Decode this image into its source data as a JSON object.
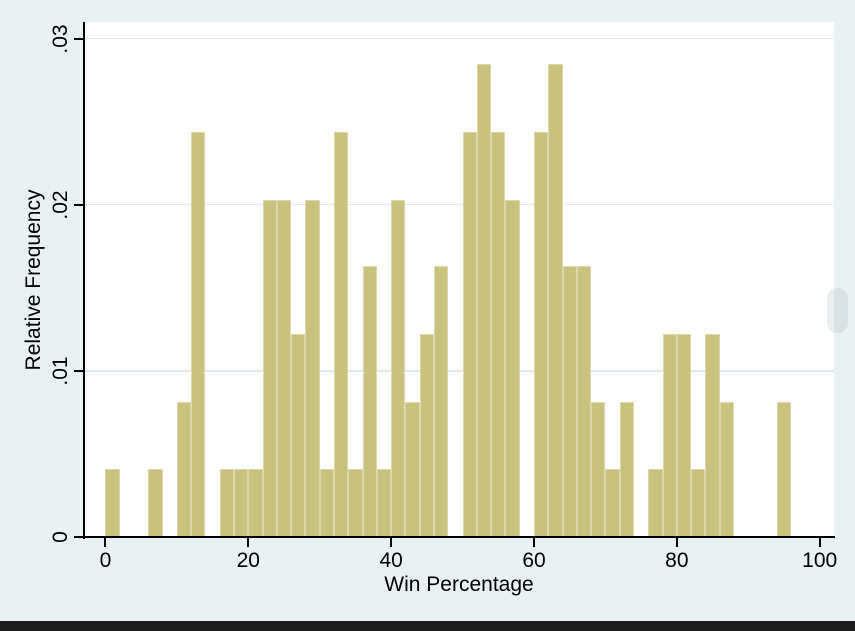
{
  "window": {
    "background_color": "#eaf1f3",
    "plot_background_color": "#ffffff",
    "gridline_color": "#dce9ef",
    "bottom_bar_color": "#1c1c1c"
  },
  "chart_data": {
    "type": "bar",
    "subtype": "histogram",
    "title": "",
    "xlabel": "Win Percentage",
    "ylabel": "Relative Frequency",
    "xlim": [
      -3,
      102
    ],
    "ylim": [
      0,
      0.031
    ],
    "grid": true,
    "y_gridlines": [
      0.01,
      0.02,
      0.03
    ],
    "bar_color": "#c9c17e",
    "bar_border_color": "#ddd8ab",
    "bin_width": 2,
    "x_ticks": [
      {
        "value": 0,
        "label": "0"
      },
      {
        "value": 20,
        "label": "20"
      },
      {
        "value": 40,
        "label": "40"
      },
      {
        "value": 60,
        "label": "60"
      },
      {
        "value": 80,
        "label": "80"
      },
      {
        "value": 100,
        "label": "100"
      }
    ],
    "y_ticks": [
      {
        "value": 0,
        "label": "0"
      },
      {
        "value": 0.01,
        "label": ".01"
      },
      {
        "value": 0.02,
        "label": ".02"
      },
      {
        "value": 0.03,
        "label": ".03"
      }
    ],
    "bins": [
      {
        "x0": 0,
        "x1": 2,
        "count": 1,
        "density": 0.0041
      },
      {
        "x0": 6,
        "x1": 8,
        "count": 1,
        "density": 0.0041
      },
      {
        "x0": 10,
        "x1": 12,
        "count": 2,
        "density": 0.0081
      },
      {
        "x0": 12,
        "x1": 14,
        "count": 6,
        "density": 0.0244
      },
      {
        "x0": 16,
        "x1": 18,
        "count": 1,
        "density": 0.0041
      },
      {
        "x0": 18,
        "x1": 20,
        "count": 1,
        "density": 0.0041
      },
      {
        "x0": 20,
        "x1": 22,
        "count": 1,
        "density": 0.0041
      },
      {
        "x0": 22,
        "x1": 24,
        "count": 5,
        "density": 0.0203
      },
      {
        "x0": 24,
        "x1": 26,
        "count": 5,
        "density": 0.0203
      },
      {
        "x0": 26,
        "x1": 28,
        "count": 3,
        "density": 0.0122
      },
      {
        "x0": 28,
        "x1": 30,
        "count": 5,
        "density": 0.0203
      },
      {
        "x0": 30,
        "x1": 32,
        "count": 1,
        "density": 0.0041
      },
      {
        "x0": 32,
        "x1": 34,
        "count": 6,
        "density": 0.0244
      },
      {
        "x0": 34,
        "x1": 36,
        "count": 1,
        "density": 0.0041
      },
      {
        "x0": 36,
        "x1": 38,
        "count": 4,
        "density": 0.0163
      },
      {
        "x0": 38,
        "x1": 40,
        "count": 1,
        "density": 0.0041
      },
      {
        "x0": 40,
        "x1": 42,
        "count": 5,
        "density": 0.0203
      },
      {
        "x0": 42,
        "x1": 44,
        "count": 2,
        "density": 0.0081
      },
      {
        "x0": 44,
        "x1": 46,
        "count": 3,
        "density": 0.0122
      },
      {
        "x0": 46,
        "x1": 48,
        "count": 4,
        "density": 0.0163
      },
      {
        "x0": 50,
        "x1": 52,
        "count": 6,
        "density": 0.0244
      },
      {
        "x0": 52,
        "x1": 54,
        "count": 7,
        "density": 0.0285
      },
      {
        "x0": 54,
        "x1": 56,
        "count": 6,
        "density": 0.0244
      },
      {
        "x0": 56,
        "x1": 58,
        "count": 5,
        "density": 0.0203
      },
      {
        "x0": 60,
        "x1": 62,
        "count": 6,
        "density": 0.0244
      },
      {
        "x0": 62,
        "x1": 64,
        "count": 7,
        "density": 0.0285
      },
      {
        "x0": 64,
        "x1": 66,
        "count": 4,
        "density": 0.0163
      },
      {
        "x0": 66,
        "x1": 68,
        "count": 4,
        "density": 0.0163
      },
      {
        "x0": 68,
        "x1": 70,
        "count": 2,
        "density": 0.0081
      },
      {
        "x0": 70,
        "x1": 72,
        "count": 1,
        "density": 0.0041
      },
      {
        "x0": 72,
        "x1": 74,
        "count": 2,
        "density": 0.0081
      },
      {
        "x0": 76,
        "x1": 78,
        "count": 1,
        "density": 0.0041
      },
      {
        "x0": 78,
        "x1": 80,
        "count": 3,
        "density": 0.0122
      },
      {
        "x0": 80,
        "x1": 82,
        "count": 3,
        "density": 0.0122
      },
      {
        "x0": 82,
        "x1": 84,
        "count": 1,
        "density": 0.0041
      },
      {
        "x0": 84,
        "x1": 86,
        "count": 3,
        "density": 0.0122
      },
      {
        "x0": 86,
        "x1": 88,
        "count": 2,
        "density": 0.0081
      },
      {
        "x0": 94,
        "x1": 96,
        "count": 2,
        "density": 0.0081
      }
    ]
  }
}
